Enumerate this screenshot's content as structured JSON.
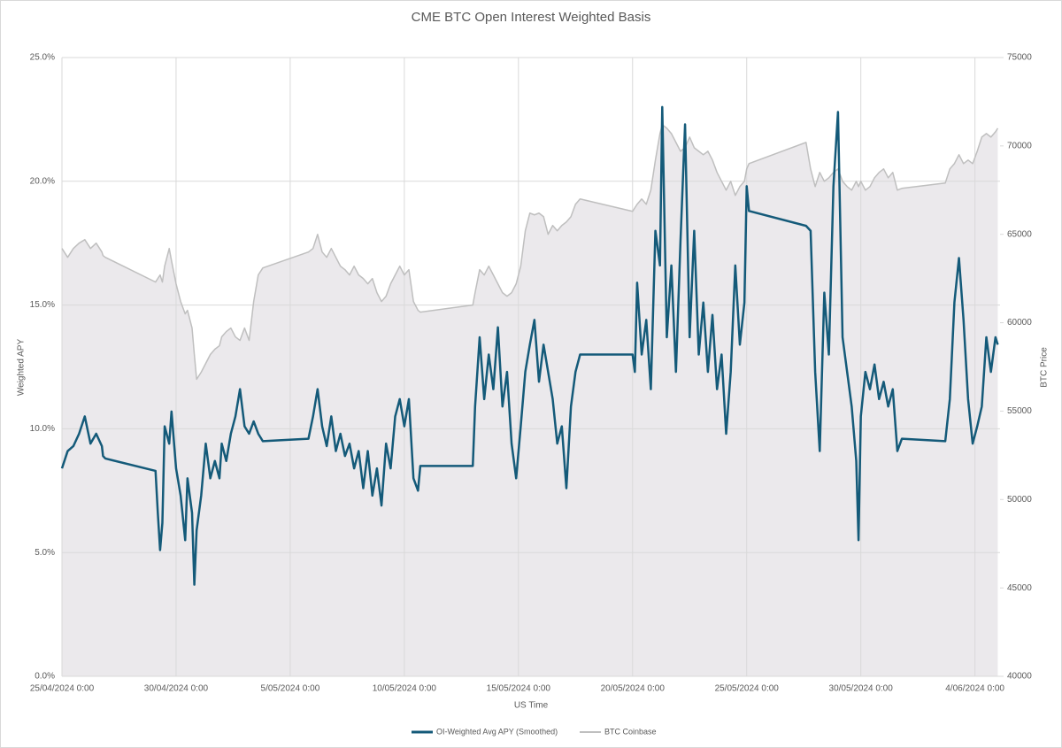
{
  "chart_data": {
    "type": "line",
    "title": "CME BTC Open Interest Weighted Basis",
    "xlabel": "US Time",
    "ylabel": "Weighted APY",
    "y2label": "BTC Price",
    "grid": true,
    "legend": "bottom",
    "x": [
      "25/04/2024 0:00",
      "25/04/2024 6:00",
      "25/04/2024 12:00",
      "25/04/2024 18:00",
      "26/04/2024 0:00",
      "26/04/2024 6:00",
      "26/04/2024 12:00",
      "26/04/2024 18:00",
      "26/04/2024 19:12",
      "26/04/2024 21:36",
      "29/04/2024 2:24",
      "29/04/2024 4:48",
      "29/04/2024 7:12",
      "29/04/2024 9:36",
      "29/04/2024 12:00",
      "29/04/2024 16:48",
      "29/04/2024 19:12",
      "30/04/2024 0:00",
      "30/04/2024 4:48",
      "30/04/2024 9:36",
      "30/04/2024 12:00",
      "30/04/2024 16:48",
      "30/04/2024 19:12",
      "30/04/2024 21:36",
      "1/05/2024 2:24",
      "1/05/2024 7:12",
      "1/05/2024 12:00",
      "1/05/2024 16:48",
      "1/05/2024 21:36",
      "2/05/2024 0:00",
      "2/05/2024 4:48",
      "2/05/2024 9:36",
      "2/05/2024 14:24",
      "2/05/2024 19:12",
      "3/05/2024 0:00",
      "3/05/2024 4:48",
      "3/05/2024 9:36",
      "3/05/2024 14:24",
      "3/05/2024 19:12",
      "5/05/2024 19:12",
      "6/05/2024 0:00",
      "6/05/2024 4:48",
      "6/05/2024 9:36",
      "6/05/2024 14:24",
      "6/05/2024 19:12",
      "7/05/2024 0:00",
      "7/05/2024 4:48",
      "7/05/2024 9:36",
      "7/05/2024 14:24",
      "7/05/2024 19:12",
      "8/05/2024 0:00",
      "8/05/2024 4:48",
      "8/05/2024 9:36",
      "8/05/2024 14:24",
      "8/05/2024 19:12",
      "9/05/2024 0:00",
      "9/05/2024 4:48",
      "9/05/2024 9:36",
      "9/05/2024 14:24",
      "9/05/2024 19:12",
      "10/05/2024 0:00",
      "10/05/2024 4:48",
      "10/05/2024 9:36",
      "10/05/2024 14:24",
      "10/05/2024 16:48",
      "13/05/2024 0:00",
      "13/05/2024 2:24",
      "13/05/2024 7:12",
      "13/05/2024 12:00",
      "13/05/2024 16:48",
      "13/05/2024 21:36",
      "14/05/2024 2:24",
      "14/05/2024 7:12",
      "14/05/2024 12:00",
      "14/05/2024 16:48",
      "14/05/2024 21:36",
      "15/05/2024 2:24",
      "15/05/2024 7:12",
      "15/05/2024 12:00",
      "15/05/2024 16:48",
      "15/05/2024 21:36",
      "16/05/2024 2:24",
      "16/05/2024 7:12",
      "16/05/2024 12:00",
      "16/05/2024 16:48",
      "16/05/2024 21:36",
      "17/05/2024 2:24",
      "17/05/2024 7:12",
      "17/05/2024 12:00",
      "17/05/2024 16:48",
      "20/05/2024 0:00",
      "20/05/2024 2:24",
      "20/05/2024 4:48",
      "20/05/2024 9:36",
      "20/05/2024 14:24",
      "20/05/2024 19:12",
      "21/05/2024 0:00",
      "21/05/2024 4:48",
      "21/05/2024 7:12",
      "21/05/2024 12:00",
      "21/05/2024 16:48",
      "21/05/2024 21:36",
      "22/05/2024 2:24",
      "22/05/2024 7:12",
      "22/05/2024 12:00",
      "22/05/2024 16:48",
      "22/05/2024 21:36",
      "23/05/2024 2:24",
      "23/05/2024 7:12",
      "23/05/2024 12:00",
      "23/05/2024 16:48",
      "23/05/2024 21:36",
      "24/05/2024 2:24",
      "24/05/2024 7:12",
      "24/05/2024 12:00",
      "24/05/2024 16:48",
      "24/05/2024 21:36",
      "25/05/2024 0:00",
      "25/05/2024 2:24",
      "27/05/2024 14:24",
      "27/05/2024 19:12",
      "28/05/2024 0:00",
      "28/05/2024 4:48",
      "28/05/2024 9:36",
      "28/05/2024 14:24",
      "28/05/2024 19:12",
      "29/05/2024 0:00",
      "29/05/2024 4:48",
      "29/05/2024 9:36",
      "29/05/2024 14:24",
      "29/05/2024 19:12",
      "29/05/2024 21:36",
      "30/05/2024 0:00",
      "30/05/2024 4:48",
      "30/05/2024 9:36",
      "30/05/2024 14:24",
      "30/05/2024 19:12",
      "31/05/2024 0:00",
      "31/05/2024 4:48",
      "31/05/2024 9:36",
      "31/05/2024 14:24",
      "31/05/2024 19:12",
      "2/06/2024 16:48",
      "2/06/2024 21:36",
      "3/06/2024 2:24",
      "3/06/2024 7:12",
      "3/06/2024 12:00",
      "3/06/2024 16:48",
      "3/06/2024 21:36",
      "4/06/2024 2:24",
      "4/06/2024 7:12",
      "4/06/2024 12:00",
      "4/06/2024 16:48",
      "4/06/2024 21:36",
      "5/06/2024 0:00"
    ],
    "series": [
      {
        "name": "OI-Weighted Avg APY (Smoothed)",
        "color": "#145a79",
        "axis": "y",
        "values": [
          8.4,
          9.1,
          9.3,
          9.8,
          10.5,
          9.4,
          9.8,
          9.3,
          8.9,
          8.8,
          8.3,
          6.6,
          5.1,
          6.2,
          10.1,
          9.4,
          10.7,
          8.4,
          7.3,
          5.5,
          8,
          6.6,
          3.7,
          5.9,
          7.3,
          9.4,
          8,
          8.7,
          8,
          9.4,
          8.7,
          9.8,
          10.5,
          11.6,
          10.1,
          9.8,
          10.3,
          9.8,
          9.5,
          9.6,
          10.5,
          11.6,
          10.1,
          9.3,
          10.5,
          9.1,
          9.8,
          8.9,
          9.4,
          8.4,
          9.1,
          7.6,
          9.1,
          7.3,
          8.4,
          6.9,
          9.4,
          8.4,
          10.5,
          11.2,
          10.1,
          11.2,
          8,
          7.5,
          8.5,
          8.5,
          10.9,
          13.7,
          11.2,
          13,
          11.6,
          14.1,
          10.9,
          12.3,
          9.4,
          8,
          10.1,
          12.3,
          13.4,
          14.4,
          11.9,
          13.4,
          12.3,
          11.2,
          9.4,
          10.1,
          7.6,
          10.9,
          12.3,
          13,
          13,
          12.3,
          15.9,
          13,
          14.4,
          11.6,
          18,
          16.6,
          23,
          13.7,
          16.6,
          12.3,
          17.6,
          22.3,
          13.7,
          18,
          13,
          15.1,
          12.3,
          14.6,
          11.6,
          13,
          9.8,
          12.3,
          16.6,
          13.4,
          15.1,
          19.8,
          18.8,
          18.2,
          18,
          12.3,
          9.1,
          15.5,
          13,
          19.8,
          22.8,
          13.7,
          12.3,
          10.9,
          8.7,
          5.5,
          10.5,
          12.3,
          11.6,
          12.6,
          11.2,
          11.9,
          10.9,
          11.6,
          9.1,
          9.6,
          9.5,
          11.2,
          15.1,
          16.9,
          14.4,
          11.2,
          9.4,
          10.1,
          10.9,
          13.7,
          12.3,
          13.7,
          13.4
        ]
      },
      {
        "name": "BTC Coinbase",
        "color": "#bfbfbf",
        "area_color": "#ebe9ec",
        "axis": "y2",
        "values": [
          64200,
          63700,
          64200,
          64500,
          64700,
          64200,
          64500,
          64000,
          63800,
          63700,
          62300,
          62500,
          62700,
          62300,
          63200,
          64200,
          63500,
          62200,
          61200,
          60500,
          60700,
          59700,
          58200,
          56800,
          57200,
          57700,
          58200,
          58500,
          58700,
          59200,
          59500,
          59700,
          59200,
          59000,
          59700,
          59000,
          61200,
          62700,
          63100,
          64000,
          64200,
          65000,
          64000,
          63700,
          64200,
          63700,
          63200,
          63000,
          62700,
          63200,
          62700,
          62500,
          62200,
          62500,
          61700,
          61200,
          61500,
          62200,
          62700,
          63200,
          62700,
          63000,
          61200,
          60700,
          60600,
          61000,
          61700,
          63000,
          62700,
          63200,
          62700,
          62200,
          61700,
          61500,
          61700,
          62200,
          63200,
          65200,
          66200,
          66100,
          66200,
          66000,
          65000,
          65500,
          65200,
          65500,
          65700,
          66000,
          66700,
          67000,
          66300,
          66500,
          66700,
          67000,
          66700,
          67500,
          69200,
          70700,
          71200,
          71000,
          70700,
          70200,
          69700,
          69900,
          70500,
          69900,
          69700,
          69500,
          69700,
          69200,
          68500,
          68000,
          67500,
          68000,
          67200,
          67700,
          68000,
          68700,
          69000,
          70200,
          68700,
          67700,
          68500,
          68000,
          68200,
          68500,
          68700,
          68000,
          67700,
          67500,
          68000,
          67700,
          68000,
          67500,
          67700,
          68200,
          68500,
          68700,
          68200,
          68500,
          67500,
          67600,
          67900,
          68700,
          69000,
          69500,
          69000,
          69200,
          69000,
          69700,
          70500,
          70700,
          70500,
          70800,
          71000
        ]
      }
    ],
    "xlim": [
      "25/04/2024 0:00",
      "5/06/2024 2:24"
    ],
    "xticks": [
      "25/04/2024 0:00",
      "30/04/2024 0:00",
      "5/05/2024 0:00",
      "10/05/2024 0:00",
      "15/05/2024 0:00",
      "20/05/2024 0:00",
      "25/05/2024 0:00",
      "30/05/2024 0:00",
      "4/06/2024 0:00"
    ],
    "ylim": [
      0,
      25
    ],
    "yticks": [
      {
        "value": 0,
        "label": "0.0%"
      },
      {
        "value": 5,
        "label": "5.0%"
      },
      {
        "value": 10,
        "label": "10.0%"
      },
      {
        "value": 15,
        "label": "15.0%"
      },
      {
        "value": 20,
        "label": "20.0%"
      },
      {
        "value": 25,
        "label": "25.0%"
      }
    ],
    "y2lim": [
      40000,
      75000
    ],
    "y2ticks": [
      40000,
      45000,
      50000,
      55000,
      60000,
      65000,
      70000,
      75000
    ]
  }
}
